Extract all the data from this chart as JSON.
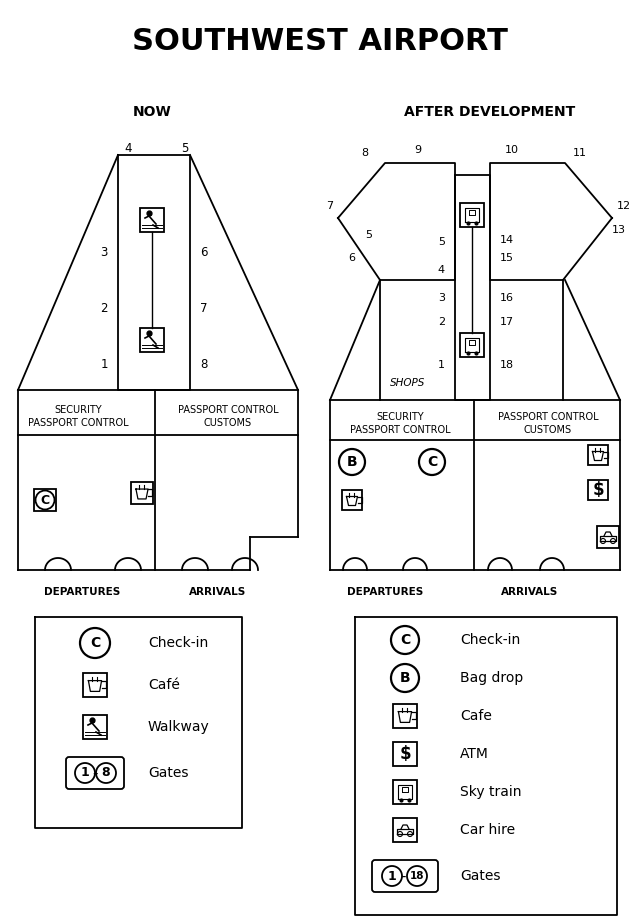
{
  "title": "SOUTHWEST AIRPORT",
  "title_fontsize": 22,
  "bg_color": "#ffffff",
  "label_now": "NOW",
  "label_after": "AFTER DEVELOPMENT",
  "departures": "DEPARTURES",
  "arrivals": "ARRIVALS"
}
